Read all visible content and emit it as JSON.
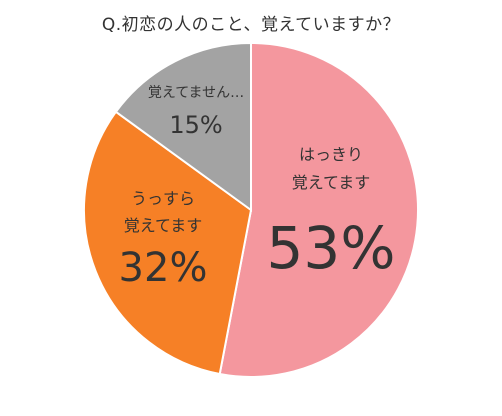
{
  "chart_data": {
    "type": "pie",
    "title": "Q.初恋の人のこと、覚えていますか？",
    "slices": [
      {
        "label_lines": [
          "はっきり",
          "覚えてます"
        ],
        "value": 53,
        "value_label": "53%",
        "color": "#F4979E"
      },
      {
        "label_lines": [
          "うっすら",
          "覚えてます"
        ],
        "value": 32,
        "value_label": "32%",
        "color": "#F68026"
      },
      {
        "label_lines": [
          "覚えてません…"
        ],
        "value": 15,
        "value_label": "15%",
        "color": "#A3A3A3"
      }
    ],
    "start": "12 o'clock",
    "direction": "clockwise",
    "legend": "none"
  }
}
